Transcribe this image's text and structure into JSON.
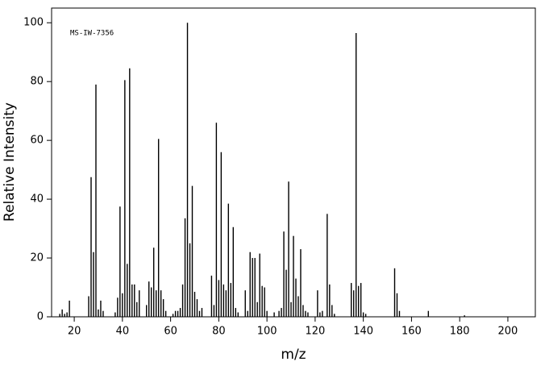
{
  "chart_data": {
    "type": "stem",
    "annotation": "MS-IW-7356",
    "xlabel": "m/z",
    "ylabel": "Relative Intensity",
    "color": "#000000",
    "xlim": [
      10.6,
      211.4
    ],
    "ylim": [
      0,
      105
    ],
    "xticks": [
      20,
      40,
      60,
      80,
      100,
      120,
      140,
      160,
      180,
      200
    ],
    "yticks": [
      0,
      20,
      40,
      60,
      80,
      100
    ],
    "x": [
      14,
      15,
      16,
      17,
      18,
      26,
      27,
      28,
      29,
      30,
      31,
      32,
      37,
      38,
      39,
      40,
      41,
      42,
      43,
      44,
      45,
      46,
      47,
      50,
      51,
      52,
      53,
      54,
      55,
      56,
      57,
      58,
      61,
      62,
      63,
      64,
      65,
      66,
      67,
      68,
      69,
      70,
      71,
      72,
      73,
      77,
      78,
      79,
      80,
      81,
      82,
      83,
      84,
      85,
      86,
      87,
      88,
      91,
      92,
      93,
      94,
      95,
      96,
      97,
      98,
      99,
      100,
      103,
      105,
      106,
      107,
      108,
      109,
      110,
      111,
      112,
      113,
      114,
      115,
      116,
      117,
      121,
      122,
      123,
      125,
      126,
      127,
      128,
      135,
      136,
      137,
      138,
      139,
      140,
      141,
      153,
      154,
      155,
      167,
      182
    ],
    "values": [
      1,
      2.5,
      1,
      1.5,
      5.5,
      7,
      47.5,
      22,
      79,
      2.5,
      5.5,
      2,
      1.5,
      6.5,
      37.5,
      8,
      80.5,
      18,
      84.5,
      11,
      11,
      5,
      9,
      4,
      12,
      10,
      23.5,
      9,
      60.5,
      9,
      6,
      2,
      1,
      2,
      2,
      3,
      11,
      33.5,
      100,
      25,
      44.5,
      8.5,
      6,
      2,
      3,
      14,
      4,
      66,
      12.5,
      56,
      11,
      9,
      38.5,
      11.5,
      30.5,
      3,
      1.5,
      9,
      2,
      22,
      20,
      20,
      5,
      21.5,
      10.5,
      10,
      2,
      1.5,
      2,
      3,
      29,
      16,
      46,
      5,
      27.5,
      13,
      7,
      23,
      4,
      2,
      1.5,
      9,
      1.5,
      2,
      35,
      11,
      4,
      1,
      11.5,
      9,
      96.5,
      10.5,
      11.5,
      1.5,
      1,
      16.5,
      8,
      2,
      2,
      0.5
    ]
  }
}
